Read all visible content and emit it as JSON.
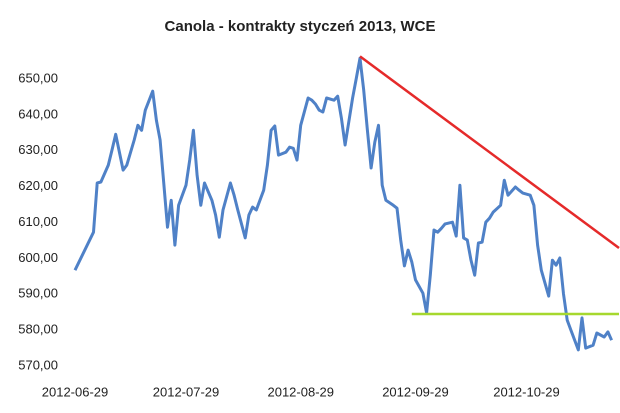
{
  "chart_data": {
    "type": "line",
    "title": "Canola - kontrakty styczeń 2013, WCE",
    "x": [
      "2012-06-29",
      "2012-07-04",
      "2012-07-05",
      "2012-07-06",
      "2012-07-08",
      "2012-07-09",
      "2012-07-10",
      "2012-07-12",
      "2012-07-13",
      "2012-07-15",
      "2012-07-16",
      "2012-07-17",
      "2012-07-18",
      "2012-07-20",
      "2012-07-21",
      "2012-07-22",
      "2012-07-24",
      "2012-07-25",
      "2012-07-26",
      "2012-07-27",
      "2012-07-29",
      "2012-07-30",
      "2012-07-31",
      "2012-08-01",
      "2012-08-02",
      "2012-08-03",
      "2012-08-05",
      "2012-08-06",
      "2012-08-07",
      "2012-08-08",
      "2012-08-10",
      "2012-08-11",
      "2012-08-12",
      "2012-08-14",
      "2012-08-15",
      "2012-08-16",
      "2012-08-17",
      "2012-08-19",
      "2012-08-20",
      "2012-08-21",
      "2012-08-22",
      "2012-08-23",
      "2012-08-25",
      "2012-08-26",
      "2012-08-27",
      "2012-08-28",
      "2012-08-29",
      "2012-08-31",
      "2012-09-01",
      "2012-09-02",
      "2012-09-03",
      "2012-09-04",
      "2012-09-05",
      "2012-09-07",
      "2012-09-08",
      "2012-09-09",
      "2012-09-10",
      "2012-09-12",
      "2012-09-13",
      "2012-09-14",
      "2012-09-15",
      "2012-09-16",
      "2012-09-17",
      "2012-09-18",
      "2012-09-19",
      "2012-09-20",
      "2012-09-21",
      "2012-09-23",
      "2012-09-24",
      "2012-09-25",
      "2012-09-26",
      "2012-09-27",
      "2012-09-28",
      "2012-09-29",
      "2012-10-01",
      "2012-10-02",
      "2012-10-03",
      "2012-10-04",
      "2012-10-05",
      "2012-10-06",
      "2012-10-07",
      "2012-10-09",
      "2012-10-10",
      "2012-10-11",
      "2012-10-12",
      "2012-10-13",
      "2012-10-14",
      "2012-10-15",
      "2012-10-16",
      "2012-10-17",
      "2012-10-18",
      "2012-10-19",
      "2012-10-20",
      "2012-10-22",
      "2012-10-23",
      "2012-10-24",
      "2012-10-26",
      "2012-10-27",
      "2012-10-28",
      "2012-10-30",
      "2012-10-31",
      "2012-11-01",
      "2012-11-02",
      "2012-11-04",
      "2012-11-05",
      "2012-11-06",
      "2012-11-07",
      "2012-11-08",
      "2012-11-09",
      "2012-11-10",
      "2012-11-12",
      "2012-11-13",
      "2012-11-14",
      "2012-11-16",
      "2012-11-17",
      "2012-11-19",
      "2012-11-20",
      "2012-11-21"
    ],
    "series": [
      {
        "color": "#4f81c7",
        "values": [
          596.7,
          607.3,
          621.0,
          621.3,
          626.0,
          630.2,
          634.6,
          624.6,
          626.0,
          633.0,
          637.1,
          635.7,
          641.3,
          646.6,
          638.5,
          633.0,
          608.7,
          616.2,
          603.7,
          614.8,
          620.4,
          627.4,
          635.7,
          623.2,
          614.8,
          621.0,
          616.2,
          612.1,
          605.9,
          613.5,
          621.0,
          617.6,
          613.5,
          605.7,
          612.1,
          614.3,
          613.5,
          619.0,
          626.0,
          635.7,
          636.9,
          628.8,
          629.6,
          631.0,
          630.7,
          627.4,
          637.1,
          644.7,
          644.1,
          643.0,
          641.3,
          640.8,
          644.7,
          644.1,
          645.2,
          639.1,
          631.6,
          644.7,
          650.2,
          655.8,
          646.9,
          635.7,
          625.2,
          632.4,
          637.1,
          620.4,
          616.2,
          614.8,
          614.0,
          605.1,
          597.9,
          602.3,
          599.0,
          594.0,
          590.3,
          584.8,
          595.3,
          607.9,
          607.3,
          608.4,
          609.6,
          610.1,
          606.2,
          620.4,
          605.7,
          605.1,
          599.5,
          595.3,
          604.3,
          604.5,
          610.1,
          611.2,
          612.9,
          614.8,
          621.8,
          617.6,
          619.9,
          619.0,
          618.2,
          617.6,
          614.8,
          603.7,
          596.7,
          589.5,
          599.5,
          598.1,
          600.1,
          590.1,
          582.8,
          580.0,
          574.5,
          583.4,
          575.0,
          575.8,
          579.2,
          578.1,
          579.5,
          577.2
        ]
      }
    ],
    "trendlines": [
      {
        "color": "#e52a2a",
        "x": [
          "2012-09-14",
          "2012-11-23"
        ],
        "values": [
          656.3,
          602.9
        ]
      },
      {
        "color": "#a6d82e",
        "x": [
          "2012-09-28",
          "2012-11-23"
        ],
        "values": [
          584.5,
          584.5
        ]
      }
    ],
    "xlim": [
      "2012-06-29",
      "2012-11-23"
    ],
    "xticks": [
      "2012-06-29",
      "2012-07-29",
      "2012-08-29",
      "2012-09-29",
      "2012-10-29"
    ],
    "ylim": [
      569,
      657
    ],
    "yticks": [
      {
        "value": 570,
        "label": "570,00"
      },
      {
        "value": 580,
        "label": "580,00"
      },
      {
        "value": 590,
        "label": "590,00"
      },
      {
        "value": 600,
        "label": "600,00"
      },
      {
        "value": 610,
        "label": "610,00"
      },
      {
        "value": 620,
        "label": "620,00"
      },
      {
        "value": 630,
        "label": "630,00"
      },
      {
        "value": 640,
        "label": "640,00"
      },
      {
        "value": 650,
        "label": "650,00"
      }
    ],
    "grid": false
  }
}
